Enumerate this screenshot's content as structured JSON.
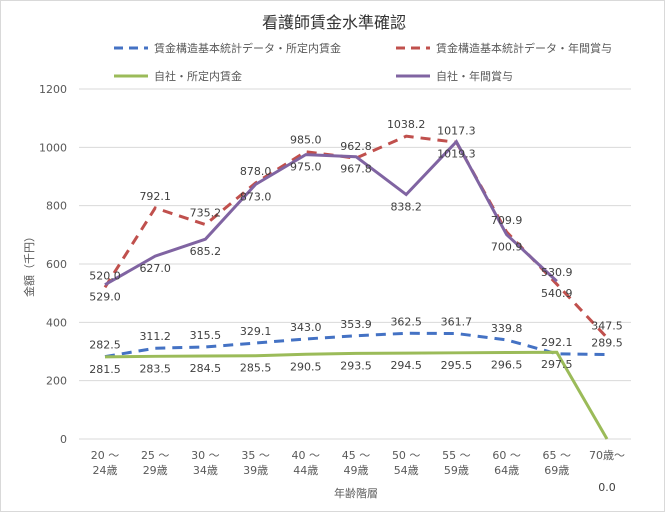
{
  "chart_data": {
    "type": "line",
    "title": "看護師賃金水準確認",
    "xlabel": "年齢階層",
    "ylabel": "金額（千円）",
    "ylim": [
      0,
      1200
    ],
    "yticks": [
      0,
      200,
      400,
      600,
      800,
      1000,
      1200
    ],
    "grid": true,
    "legend_position": "top",
    "categories": [
      [
        "20 ～",
        "24歳"
      ],
      [
        "25 ～",
        "29歳"
      ],
      [
        "30 ～",
        "34歳"
      ],
      [
        "35 ～",
        "39歳"
      ],
      [
        "40 ～",
        "44歳"
      ],
      [
        "45 ～",
        "49歳"
      ],
      [
        "50 ～",
        "54歳"
      ],
      [
        "55 ～",
        "59歳"
      ],
      [
        "60 ～",
        "64歳"
      ],
      [
        "65 ～",
        "69歳"
      ],
      [
        "70歳～",
        ""
      ]
    ],
    "series": [
      {
        "name": "賃金構造基本統計データ・所定内賃金",
        "color": "#4472c4",
        "dash": true,
        "values": [
          282.5,
          311.2,
          315.5,
          329.1,
          343.0,
          353.9,
          362.5,
          361.7,
          339.8,
          292.1,
          289.5
        ]
      },
      {
        "name": "賃金構造基本統計データ・年間賞与",
        "color": "#c0504d",
        "dash": true,
        "values": [
          520.0,
          792.1,
          735.2,
          878.0,
          985.0,
          962.8,
          1038.2,
          1017.3,
          709.9,
          530.9,
          347.5
        ]
      },
      {
        "name": "自社・所定内賃金",
        "color": "#9bbb59",
        "dash": false,
        "values": [
          281.5,
          283.5,
          284.5,
          285.5,
          290.5,
          293.5,
          294.5,
          295.5,
          296.5,
          297.5,
          0.0
        ]
      },
      {
        "name": "自社・年間賞与",
        "color": "#8064a2",
        "dash": false,
        "values": [
          529.0,
          627.0,
          685.2,
          873.0,
          975.0,
          967.8,
          838.2,
          1019.3,
          700.9,
          540.9,
          null
        ]
      }
    ]
  }
}
